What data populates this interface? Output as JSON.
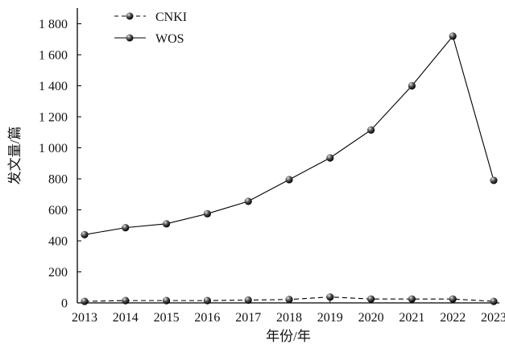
{
  "chart_data": {
    "type": "line",
    "title": "",
    "xlabel": "年份/年",
    "ylabel": "发文量/篇",
    "x": [
      "2013",
      "2014",
      "2015",
      "2016",
      "2017",
      "2018",
      "2019",
      "2020",
      "2021",
      "2022",
      "2023"
    ],
    "ylim": [
      0,
      1900
    ],
    "yticks": [
      0,
      200,
      400,
      600,
      800,
      1000,
      1200,
      1400,
      1600,
      1800
    ],
    "ytick_labels": [
      "0",
      "200",
      "400",
      "600",
      "800",
      "1 000",
      "1 200",
      "1 400",
      "1 600",
      "1 800"
    ],
    "grid": false,
    "legend_position": "top-left",
    "series": [
      {
        "name": "CNKI",
        "line_style": "dashed",
        "values": [
          10,
          15,
          15,
          15,
          18,
          22,
          38,
          25,
          25,
          25,
          10
        ]
      },
      {
        "name": "WOS",
        "line_style": "solid",
        "values": [
          440,
          485,
          510,
          575,
          655,
          795,
          935,
          1115,
          1400,
          1720,
          790
        ]
      }
    ]
  }
}
